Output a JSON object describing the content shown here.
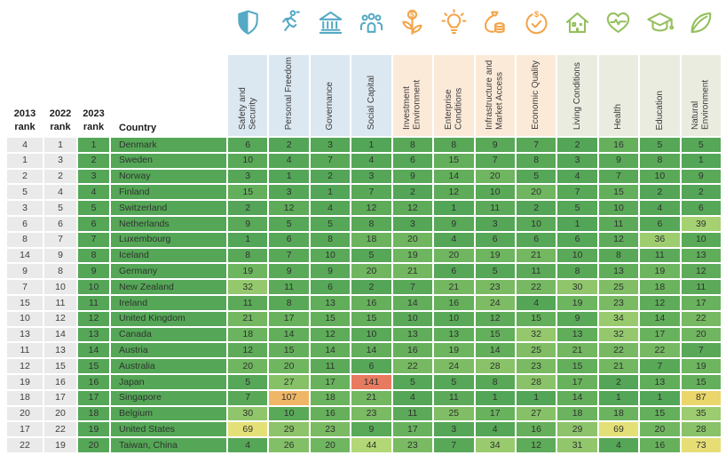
{
  "chart_data": {
    "type": "table",
    "rank_column_headers": [
      "2013 rank",
      "2022 rank",
      "2023 rank"
    ],
    "country_column_header": "Country",
    "pillar_columns": [
      {
        "label": "Safety and Security",
        "group": "institutional",
        "icon": "shield-icon"
      },
      {
        "label": "Personal Freedom",
        "group": "institutional",
        "icon": "runner-icon"
      },
      {
        "label": "Governance",
        "group": "institutional",
        "icon": "bank-icon"
      },
      {
        "label": "Social Capital",
        "group": "institutional",
        "icon": "people-icon"
      },
      {
        "label": "Investment Environment",
        "group": "economic",
        "icon": "sprout-dollar-icon"
      },
      {
        "label": "Enterprise Conditions",
        "group": "economic",
        "icon": "lightbulb-icon"
      },
      {
        "label": "Infrastructure and Market Access",
        "group": "economic",
        "icon": "moneybag-icon"
      },
      {
        "label": "Economic Quality",
        "group": "economic",
        "icon": "dollar-check-icon"
      },
      {
        "label": "Living Conditions",
        "group": "social",
        "icon": "house-icon"
      },
      {
        "label": "Health",
        "group": "social",
        "icon": "heart-pulse-icon"
      },
      {
        "label": "Education",
        "group": "social",
        "icon": "graduation-cap-icon"
      },
      {
        "label": "Natural Environment",
        "group": "social",
        "icon": "leaf-icon"
      }
    ],
    "rows": [
      {
        "rank_2013": 4,
        "rank_2022": 1,
        "rank_2023": 1,
        "country": "Denmark",
        "pillar_ranks": [
          6,
          2,
          3,
          1,
          8,
          8,
          9,
          7,
          2,
          16,
          5,
          5
        ]
      },
      {
        "rank_2013": 1,
        "rank_2022": 3,
        "rank_2023": 2,
        "country": "Sweden",
        "pillar_ranks": [
          10,
          4,
          7,
          4,
          6,
          15,
          7,
          8,
          3,
          9,
          8,
          1
        ]
      },
      {
        "rank_2013": 2,
        "rank_2022": 2,
        "rank_2023": 3,
        "country": "Norway",
        "pillar_ranks": [
          3,
          1,
          2,
          3,
          9,
          14,
          20,
          5,
          4,
          7,
          10,
          9
        ]
      },
      {
        "rank_2013": 5,
        "rank_2022": 4,
        "rank_2023": 4,
        "country": "Finland",
        "pillar_ranks": [
          15,
          3,
          1,
          7,
          2,
          12,
          10,
          20,
          7,
          15,
          2,
          2
        ]
      },
      {
        "rank_2013": 3,
        "rank_2022": 5,
        "rank_2023": 5,
        "country": "Switzerland",
        "pillar_ranks": [
          2,
          12,
          4,
          12,
          12,
          1,
          11,
          2,
          5,
          10,
          4,
          6
        ]
      },
      {
        "rank_2013": 6,
        "rank_2022": 6,
        "rank_2023": 6,
        "country": "Netherlands",
        "pillar_ranks": [
          9,
          5,
          5,
          8,
          3,
          9,
          3,
          10,
          1,
          11,
          6,
          39
        ]
      },
      {
        "rank_2013": 8,
        "rank_2022": 7,
        "rank_2023": 7,
        "country": "Luxembourg",
        "pillar_ranks": [
          1,
          6,
          8,
          18,
          20,
          4,
          6,
          6,
          6,
          12,
          36,
          10
        ]
      },
      {
        "rank_2013": 14,
        "rank_2022": 9,
        "rank_2023": 8,
        "country": "Iceland",
        "pillar_ranks": [
          8,
          7,
          10,
          5,
          19,
          20,
          19,
          21,
          10,
          8,
          11,
          13
        ]
      },
      {
        "rank_2013": 9,
        "rank_2022": 8,
        "rank_2023": 9,
        "country": "Germany",
        "pillar_ranks": [
          19,
          9,
          9,
          20,
          21,
          6,
          5,
          11,
          8,
          13,
          19,
          12
        ]
      },
      {
        "rank_2013": 7,
        "rank_2022": 10,
        "rank_2023": 10,
        "country": "New Zealand",
        "pillar_ranks": [
          32,
          11,
          6,
          2,
          7,
          21,
          23,
          22,
          30,
          25,
          18,
          11
        ]
      },
      {
        "rank_2013": 15,
        "rank_2022": 11,
        "rank_2023": 11,
        "country": "Ireland",
        "pillar_ranks": [
          11,
          8,
          13,
          16,
          14,
          16,
          24,
          4,
          19,
          23,
          12,
          17
        ]
      },
      {
        "rank_2013": 10,
        "rank_2022": 12,
        "rank_2023": 12,
        "country": "United Kingdom",
        "pillar_ranks": [
          21,
          17,
          15,
          15,
          10,
          10,
          12,
          15,
          9,
          34,
          14,
          22
        ]
      },
      {
        "rank_2013": 13,
        "rank_2022": 14,
        "rank_2023": 13,
        "country": "Canada",
        "pillar_ranks": [
          18,
          14,
          12,
          10,
          13,
          13,
          15,
          32,
          13,
          32,
          17,
          20
        ]
      },
      {
        "rank_2013": 11,
        "rank_2022": 13,
        "rank_2023": 14,
        "country": "Austria",
        "pillar_ranks": [
          12,
          15,
          14,
          14,
          16,
          19,
          14,
          25,
          21,
          22,
          22,
          7
        ]
      },
      {
        "rank_2013": 12,
        "rank_2022": 15,
        "rank_2023": 15,
        "country": "Australia",
        "pillar_ranks": [
          20,
          20,
          11,
          6,
          22,
          24,
          28,
          23,
          15,
          21,
          7,
          19
        ]
      },
      {
        "rank_2013": 19,
        "rank_2022": 16,
        "rank_2023": 16,
        "country": "Japan",
        "pillar_ranks": [
          5,
          27,
          17,
          141,
          5,
          5,
          8,
          28,
          17,
          2,
          13,
          15
        ]
      },
      {
        "rank_2013": 18,
        "rank_2022": 17,
        "rank_2023": 17,
        "country": "Singapore",
        "pillar_ranks": [
          7,
          107,
          18,
          21,
          4,
          11,
          1,
          1,
          14,
          1,
          1,
          87
        ]
      },
      {
        "rank_2013": 20,
        "rank_2022": 20,
        "rank_2023": 18,
        "country": "Belgium",
        "pillar_ranks": [
          30,
          10,
          16,
          23,
          11,
          25,
          17,
          27,
          18,
          18,
          15,
          35
        ]
      },
      {
        "rank_2013": 17,
        "rank_2022": 22,
        "rank_2023": 19,
        "country": "United States",
        "pillar_ranks": [
          69,
          29,
          23,
          9,
          17,
          3,
          4,
          16,
          29,
          69,
          20,
          28
        ]
      },
      {
        "rank_2013": 22,
        "rank_2022": 19,
        "rank_2023": 20,
        "country": "Taiwan, China",
        "pillar_ranks": [
          4,
          26,
          20,
          44,
          23,
          7,
          34,
          12,
          31,
          4,
          16,
          73
        ]
      }
    ]
  },
  "colors": {
    "group_header_bg": {
      "institutional": "#dce8f1",
      "economic": "#fcead9",
      "social": "#e9ecdf"
    },
    "group_icon": {
      "institutional": "#55a9c5",
      "economic": "#f2a54b",
      "social": "#94c05d"
    },
    "rank_col_bg": "#eaeaea",
    "country_col_bg": "#55a757",
    "cell_text": "#2e332e",
    "header_text": "#1c1c1c",
    "scale_stops": [
      [
        1,
        "#53a557"
      ],
      [
        10,
        "#5aa958"
      ],
      [
        15,
        "#64af5b"
      ],
      [
        20,
        "#70b660"
      ],
      [
        25,
        "#80bd65"
      ],
      [
        30,
        "#90c56b"
      ],
      [
        36,
        "#9ecd70"
      ],
      [
        44,
        "#b3d776"
      ],
      [
        55,
        "#cddd7a"
      ],
      [
        69,
        "#e4e078"
      ],
      [
        80,
        "#e9da71"
      ],
      [
        90,
        "#ecd46a"
      ],
      [
        100,
        "#efc167"
      ],
      [
        110,
        "#f0b167"
      ],
      [
        125,
        "#ec9563"
      ],
      [
        141,
        "#e87a60"
      ]
    ]
  }
}
